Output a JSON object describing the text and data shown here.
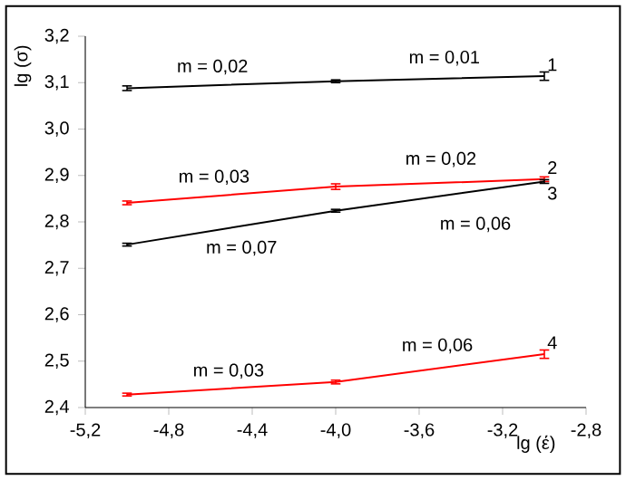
{
  "chart_data": {
    "type": "line",
    "xlabel": "lg (έ)",
    "ylabel": "lg (σ)",
    "x": [
      -5,
      -4,
      -3
    ],
    "series": [
      {
        "name": "1",
        "color": "#000000",
        "values": [
          3.088,
          3.103,
          3.114
        ],
        "errors": [
          0.005,
          0.003,
          0.009
        ]
      },
      {
        "name": "2",
        "color": "#ff0000",
        "values": [
          2.841,
          2.876,
          2.892
        ],
        "errors": [
          0.004,
          0.006,
          0.005
        ]
      },
      {
        "name": "3",
        "color": "#000000",
        "values": [
          2.751,
          2.824,
          2.887
        ],
        "errors": [
          0.003,
          0.003,
          0.004
        ]
      },
      {
        "name": "4",
        "color": "#ff0000",
        "values": [
          2.428,
          2.455,
          2.515
        ],
        "errors": [
          0.003,
          0.004,
          0.009
        ]
      }
    ],
    "annotations": [
      "m = 0,02",
      "m = 0,01",
      "m = 0,03",
      "m = 0,02",
      "m = 0,06",
      "m = 0,07",
      "m = 0,03",
      "m = 0,06"
    ],
    "xlim": [
      -5.2,
      -2.8
    ],
    "xticks": [
      {
        "value": -5.2,
        "label": "-5,2"
      },
      {
        "value": -4.8,
        "label": "-4,8"
      },
      {
        "value": -4.4,
        "label": "-4,4"
      },
      {
        "value": -4.0,
        "label": "-4,0"
      },
      {
        "value": -3.6,
        "label": "-3,6"
      },
      {
        "value": -3.2,
        "label": "-3,2"
      },
      {
        "value": -2.8,
        "label": "-2,8"
      }
    ],
    "ylim": [
      2.4,
      3.2
    ],
    "yticks": [
      {
        "value": 2.4,
        "label": "2,4"
      },
      {
        "value": 2.5,
        "label": "2,5"
      },
      {
        "value": 2.6,
        "label": "2,6"
      },
      {
        "value": 2.7,
        "label": "2,7"
      },
      {
        "value": 2.8,
        "label": "2,8"
      },
      {
        "value": 2.9,
        "label": "2,9"
      },
      {
        "value": 3.0,
        "label": "3,0"
      },
      {
        "value": 3.1,
        "label": "3,1"
      },
      {
        "value": 3.2,
        "label": "3,2"
      }
    ],
    "marker": "none",
    "line_style": "solid"
  }
}
